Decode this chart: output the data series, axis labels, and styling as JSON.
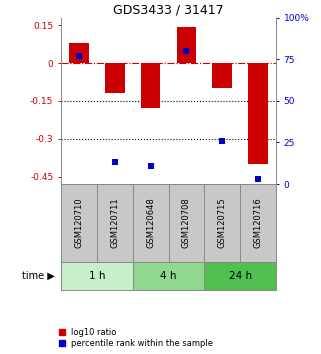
{
  "title": "GDS3433 / 31417",
  "samples": [
    "GSM120710",
    "GSM120711",
    "GSM120648",
    "GSM120708",
    "GSM120715",
    "GSM120716"
  ],
  "log10_ratio": [
    0.08,
    -0.12,
    -0.18,
    0.145,
    -0.1,
    -0.4
  ],
  "percentile_rank": [
    77,
    13,
    11,
    80,
    26,
    3
  ],
  "time_groups": [
    {
      "label": "1 h",
      "start": 0,
      "end": 2,
      "color": "#c8f0c8"
    },
    {
      "label": "4 h",
      "start": 2,
      "end": 4,
      "color": "#90d890"
    },
    {
      "label": "24 h",
      "start": 4,
      "end": 6,
      "color": "#50c050"
    }
  ],
  "ylim_left": [
    -0.48,
    0.18
  ],
  "ylim_right": [
    0,
    100
  ],
  "yticks_left": [
    0.15,
    0.0,
    -0.15,
    -0.3,
    -0.45
  ],
  "yticks_right": [
    100,
    75,
    50,
    25,
    0
  ],
  "bar_color": "#cc0000",
  "square_color": "#0000cc",
  "bar_width": 0.55,
  "square_size": 25,
  "hline_y": 0.0,
  "hline_color": "#cc0000",
  "hline_style": "-.",
  "dotted_lines": [
    -0.15,
    -0.3
  ],
  "dotted_color": "#000000",
  "bg_color": "#ffffff",
  "plot_bg": "#ffffff",
  "title_color": "#000000",
  "left_axis_color": "#cc0000",
  "right_axis_color": "#0000cc",
  "label_log10": "log10 ratio",
  "label_pct": "percentile rank within the sample",
  "time_label": "time"
}
